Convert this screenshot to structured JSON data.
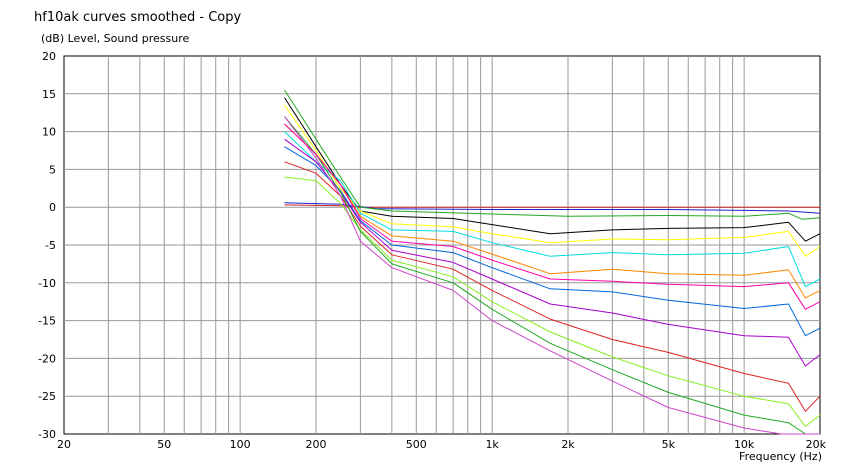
{
  "chart_data": {
    "type": "line",
    "title": "hf10ak curves smoothed - Copy",
    "ylabel": "(dB)  Level, Sound pressure",
    "xlabel": "Frequency  (Hz)",
    "xscale": "log",
    "xlim": [
      20,
      20000
    ],
    "ylim": [
      -30,
      20
    ],
    "grid": true,
    "xticks": [
      {
        "v": 20,
        "label": "20"
      },
      {
        "v": 50,
        "label": "50"
      },
      {
        "v": 100,
        "label": "100"
      },
      {
        "v": 200,
        "label": "200"
      },
      {
        "v": 500,
        "label": "500"
      },
      {
        "v": 1000,
        "label": "1k"
      },
      {
        "v": 2000,
        "label": "2k"
      },
      {
        "v": 5000,
        "label": "5k"
      },
      {
        "v": 10000,
        "label": "10k"
      },
      {
        "v": 20000,
        "label": "20k"
      }
    ],
    "yticks": [
      20,
      15,
      10,
      5,
      0,
      -5,
      -10,
      -15,
      -20,
      -25,
      -30
    ],
    "series": [
      {
        "color": "#cc2222",
        "points": [
          [
            150,
            0.3
          ],
          [
            250,
            0.2
          ],
          [
            300,
            0
          ],
          [
            1000,
            0
          ],
          [
            5000,
            0
          ],
          [
            10000,
            0
          ],
          [
            20000,
            0
          ]
        ]
      },
      {
        "color": "#2222cc",
        "points": [
          [
            150,
            0.6
          ],
          [
            250,
            0.4
          ],
          [
            350,
            -0.2
          ],
          [
            1000,
            -0.3
          ],
          [
            5000,
            -0.3
          ],
          [
            15000,
            -0.5
          ],
          [
            20000,
            -0.8
          ]
        ]
      },
      {
        "color": "#22aa22",
        "points": [
          [
            150,
            15.5
          ],
          [
            200,
            9
          ],
          [
            250,
            4
          ],
          [
            300,
            0
          ],
          [
            400,
            -0.5
          ],
          [
            1000,
            -0.9
          ],
          [
            2000,
            -1.2
          ],
          [
            5000,
            -1.1
          ],
          [
            10000,
            -1.2
          ],
          [
            15000,
            -0.8
          ],
          [
            17000,
            -1.6
          ],
          [
            20000,
            -1.4
          ]
        ]
      },
      {
        "color": "#000000",
        "points": [
          [
            150,
            14.5
          ],
          [
            200,
            8
          ],
          [
            250,
            3
          ],
          [
            300,
            -0.5
          ],
          [
            400,
            -1.2
          ],
          [
            700,
            -1.5
          ],
          [
            1000,
            -2.3
          ],
          [
            1700,
            -3.5
          ],
          [
            3000,
            -3
          ],
          [
            5000,
            -2.8
          ],
          [
            10000,
            -2.7
          ],
          [
            15000,
            -2
          ],
          [
            17500,
            -4.5
          ],
          [
            20000,
            -3.5
          ]
        ]
      },
      {
        "color": "#ffff00",
        "points": [
          [
            150,
            13.5
          ],
          [
            200,
            7.5
          ],
          [
            250,
            2.5
          ],
          [
            300,
            -0.5
          ],
          [
            400,
            -2.2
          ],
          [
            700,
            -2.6
          ],
          [
            1000,
            -3.5
          ],
          [
            1700,
            -4.7
          ],
          [
            3000,
            -4.2
          ],
          [
            5000,
            -4.3
          ],
          [
            10000,
            -4
          ],
          [
            15000,
            -3.2
          ],
          [
            17500,
            -6.5
          ],
          [
            20000,
            -5.2
          ]
        ]
      },
      {
        "color": "#00dddd",
        "points": [
          [
            150,
            10
          ],
          [
            200,
            6
          ],
          [
            250,
            3.5
          ],
          [
            300,
            -0.8
          ],
          [
            400,
            -3
          ],
          [
            700,
            -3.2
          ],
          [
            1000,
            -4.7
          ],
          [
            1700,
            -6.5
          ],
          [
            3000,
            -6
          ],
          [
            5000,
            -6.3
          ],
          [
            10000,
            -6.1
          ],
          [
            15000,
            -5.2
          ],
          [
            17500,
            -10.5
          ],
          [
            20000,
            -9.5
          ]
        ]
      },
      {
        "color": "#ff8800",
        "points": [
          [
            150,
            11
          ],
          [
            200,
            7
          ],
          [
            250,
            3
          ],
          [
            300,
            -1.2
          ],
          [
            400,
            -3.8
          ],
          [
            700,
            -4.5
          ],
          [
            1000,
            -6.2
          ],
          [
            1700,
            -8.8
          ],
          [
            3000,
            -8.2
          ],
          [
            5000,
            -8.8
          ],
          [
            10000,
            -9
          ],
          [
            15000,
            -8.3
          ],
          [
            17500,
            -12
          ],
          [
            20000,
            -11
          ]
        ]
      },
      {
        "color": "#0066dd",
        "points": [
          [
            150,
            8
          ],
          [
            200,
            5.5
          ],
          [
            250,
            2.2
          ],
          [
            300,
            -1.8
          ],
          [
            400,
            -5
          ],
          [
            700,
            -6
          ],
          [
            1000,
            -8
          ],
          [
            1700,
            -10.8
          ],
          [
            3000,
            -11.2
          ],
          [
            5000,
            -12.3
          ],
          [
            10000,
            -13.4
          ],
          [
            15000,
            -12.8
          ],
          [
            17500,
            -17
          ],
          [
            20000,
            -16
          ]
        ]
      },
      {
        "color": "#aa00cc",
        "points": [
          [
            150,
            9
          ],
          [
            200,
            6
          ],
          [
            250,
            2
          ],
          [
            300,
            -2
          ],
          [
            400,
            -5.7
          ],
          [
            700,
            -7.3
          ],
          [
            1000,
            -9.5
          ],
          [
            1700,
            -12.8
          ],
          [
            3000,
            -14
          ],
          [
            5000,
            -15.5
          ],
          [
            10000,
            -17
          ],
          [
            15000,
            -17.2
          ],
          [
            17500,
            -21
          ],
          [
            20000,
            -19.5
          ]
        ]
      },
      {
        "color": "#dd2222",
        "points": [
          [
            150,
            6
          ],
          [
            200,
            4.5
          ],
          [
            250,
            1.5
          ],
          [
            300,
            -2.5
          ],
          [
            400,
            -6.3
          ],
          [
            700,
            -8.2
          ],
          [
            1000,
            -11
          ],
          [
            1700,
            -14.8
          ],
          [
            3000,
            -17.5
          ],
          [
            5000,
            -19.2
          ],
          [
            10000,
            -22
          ],
          [
            15000,
            -23.3
          ],
          [
            17500,
            -27
          ],
          [
            20000,
            -25
          ]
        ]
      },
      {
        "color": "#88ee22",
        "points": [
          [
            150,
            4
          ],
          [
            200,
            3.5
          ],
          [
            250,
            0.5
          ],
          [
            300,
            -3
          ],
          [
            400,
            -7
          ],
          [
            700,
            -9.2
          ],
          [
            1000,
            -12.5
          ],
          [
            1700,
            -16.5
          ],
          [
            3000,
            -19.8
          ],
          [
            5000,
            -22.3
          ],
          [
            10000,
            -25
          ],
          [
            15000,
            -26
          ],
          [
            17500,
            -29
          ],
          [
            20000,
            -27.5
          ]
        ]
      },
      {
        "color": "#22aa22",
        "points": [
          [
            150,
            12
          ],
          [
            200,
            7
          ],
          [
            250,
            2
          ],
          [
            300,
            -3.2
          ],
          [
            400,
            -7.5
          ],
          [
            700,
            -10
          ],
          [
            1000,
            -13.5
          ],
          [
            1700,
            -18
          ],
          [
            3000,
            -21.5
          ],
          [
            5000,
            -24.5
          ],
          [
            10000,
            -27.5
          ],
          [
            15000,
            -28.5
          ],
          [
            17500,
            -30
          ],
          [
            20000,
            -30
          ]
        ]
      },
      {
        "color": "#cc44cc",
        "points": [
          [
            150,
            12
          ],
          [
            200,
            6.5
          ],
          [
            250,
            1.5
          ],
          [
            300,
            -4.5
          ],
          [
            400,
            -8
          ],
          [
            700,
            -11
          ],
          [
            1000,
            -15
          ],
          [
            1700,
            -19
          ],
          [
            3000,
            -23
          ],
          [
            5000,
            -26.5
          ],
          [
            10000,
            -29.2
          ],
          [
            14000,
            -30
          ],
          [
            20000,
            -30
          ]
        ]
      },
      {
        "color": "#ff00aa",
        "points": [
          [
            150,
            11
          ],
          [
            200,
            7
          ],
          [
            250,
            3
          ],
          [
            300,
            -1.5
          ],
          [
            400,
            -4.5
          ],
          [
            700,
            -5.2
          ],
          [
            1000,
            -7
          ],
          [
            1700,
            -9.5
          ],
          [
            3000,
            -9.8
          ],
          [
            5000,
            -10.2
          ],
          [
            10000,
            -10.5
          ],
          [
            15000,
            -10
          ],
          [
            17500,
            -13.5
          ],
          [
            20000,
            -12.5
          ]
        ]
      }
    ]
  }
}
